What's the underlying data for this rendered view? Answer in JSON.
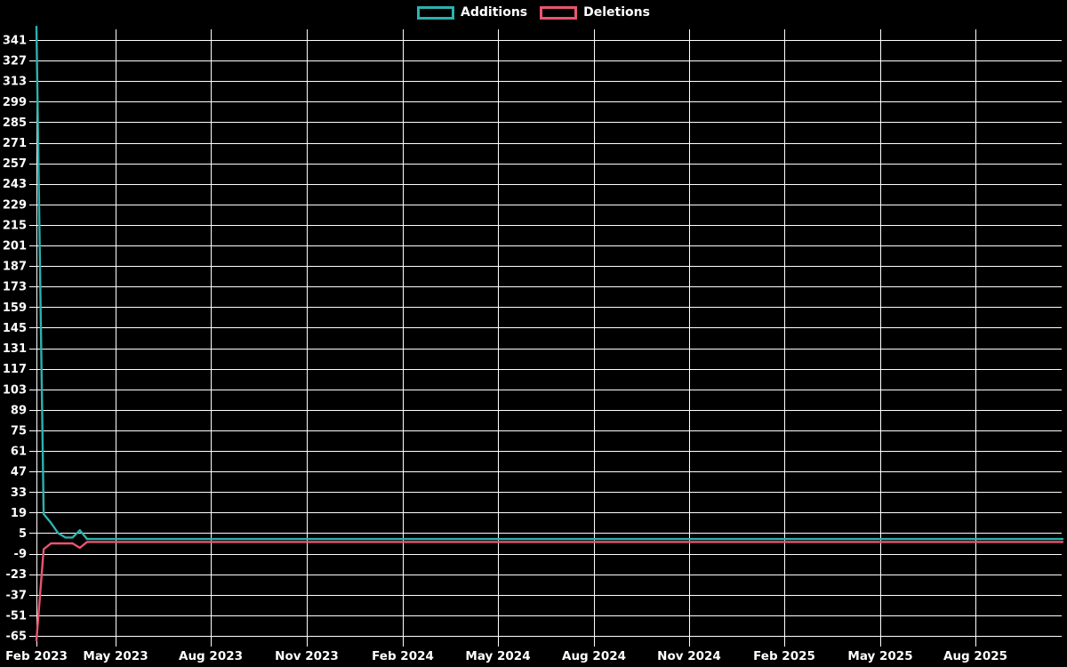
{
  "legend": {
    "additions_label": "Additions",
    "deletions_label": "Deletions"
  },
  "colors": {
    "background": "#000000",
    "grid": "#ffffff",
    "text": "#ffffff",
    "additions": "#2db1ae",
    "deletions": "#e85570"
  },
  "chart_data": {
    "type": "line",
    "title": "",
    "xlabel": "",
    "ylabel": "",
    "grid": true,
    "legend_position": "top-center",
    "ylim": [
      -65,
      341
    ],
    "y_tick_step": 14,
    "y_ticks": [
      341,
      327,
      313,
      299,
      285,
      271,
      257,
      243,
      229,
      215,
      201,
      187,
      173,
      159,
      145,
      131,
      117,
      103,
      89,
      75,
      61,
      47,
      33,
      19,
      5,
      -9,
      -23,
      -37,
      -51,
      -65
    ],
    "x_tick_labels": [
      "Feb 2023",
      "May 2023",
      "Aug 2023",
      "Nov 2023",
      "Feb 2024",
      "May 2024",
      "Aug 2024",
      "Nov 2024",
      "Feb 2025",
      "May 2025",
      "Aug 2025"
    ],
    "x_range": "weekly points, Feb 2023 through late Oct 2025",
    "n_points": 143,
    "series": [
      {
        "name": "Additions",
        "color": "#2db1ae",
        "default_value": 1,
        "overrides": {
          "0": 350,
          "1": 18,
          "2": 12,
          "3": 5,
          "4": 2,
          "5": 2,
          "6": 7
        }
      },
      {
        "name": "Deletions",
        "color": "#e85570",
        "default_value": -1,
        "overrides": {
          "0": -68,
          "1": -6,
          "2": -2,
          "3": -2,
          "4": -2,
          "5": -2,
          "6": -5
        }
      }
    ]
  }
}
